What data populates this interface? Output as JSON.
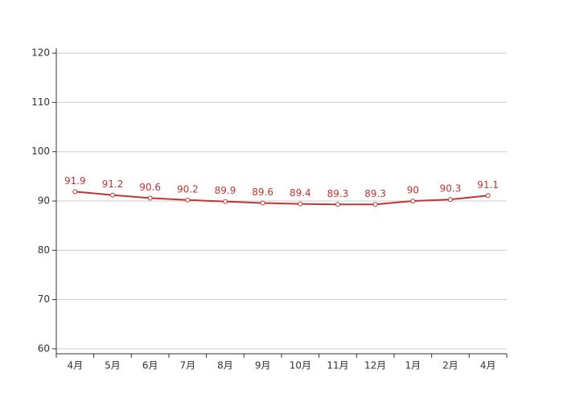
{
  "chart_data": {
    "type": "line",
    "categories": [
      "4月",
      "5月",
      "6月",
      "7月",
      "8月",
      "9月",
      "10月",
      "11月",
      "12月",
      "1月",
      "2月",
      "4月"
    ],
    "series": [
      {
        "color": "#c23531",
        "values": [
          91.9,
          91.2,
          90.6,
          90.2,
          89.9,
          89.6,
          89.4,
          89.3,
          89.3,
          90,
          90.3,
          91.1
        ]
      }
    ],
    "ylim": [
      59,
      121
    ],
    "yticks": [
      60,
      70,
      80,
      90,
      100,
      110,
      120
    ],
    "grid": true
  }
}
